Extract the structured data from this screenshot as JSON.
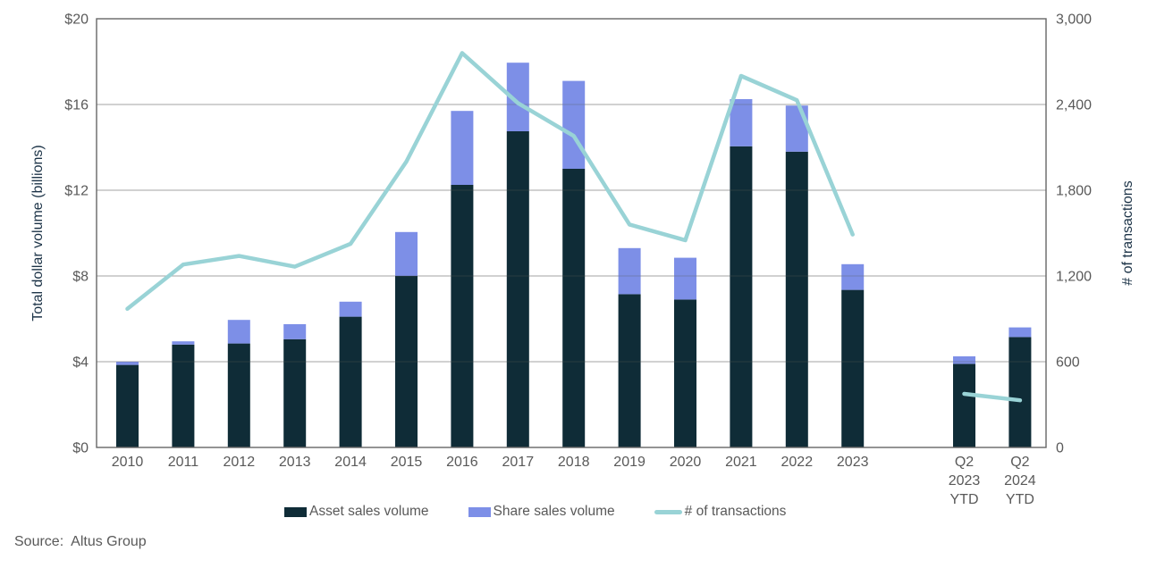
{
  "source_note": "Source:  Altus Group",
  "colors": {
    "asset": "#0f2c37",
    "share": "#7d8fe7",
    "line": "#99d3d6",
    "grid": "#d9d9d9",
    "grid_overlay": "rgba(89,89,89,0.35)",
    "frame": "#666666",
    "tick_text": "#595959",
    "axis_title_text": "#1c3347"
  },
  "chart_data": {
    "type": "bar",
    "subtype": "stacked-bars-with-line-combo",
    "title": "",
    "xlabel": "",
    "ylabel_left": "Total dollar volume (billions)",
    "ylabel_right": "# of transactions",
    "ylim_left": [
      0,
      20
    ],
    "ylim_right": [
      0,
      3000
    ],
    "grid": "horizontal",
    "legend_position": "bottom",
    "categories": [
      "2010",
      "2011",
      "2012",
      "2013",
      "2014",
      "2015",
      "2016",
      "2017",
      "2018",
      "2019",
      "2020",
      "2021",
      "2022",
      "2023",
      "Q2 2023 YTD",
      "Q2 2024 YTD"
    ],
    "category_tick_lines": [
      [
        "2010"
      ],
      [
        "2011"
      ],
      [
        "2012"
      ],
      [
        "2013"
      ],
      [
        "2014"
      ],
      [
        "2015"
      ],
      [
        "2016"
      ],
      [
        "2017"
      ],
      [
        "2018"
      ],
      [
        "2019"
      ],
      [
        "2020"
      ],
      [
        "2021"
      ],
      [
        "2022"
      ],
      [
        "2023"
      ],
      [
        "Q2",
        "2023",
        "YTD"
      ],
      [
        "Q2",
        "2024",
        "YTD"
      ]
    ],
    "slots": [
      0,
      1,
      2,
      3,
      4,
      5,
      6,
      7,
      8,
      9,
      10,
      11,
      12,
      13,
      15,
      16
    ],
    "total_slots": 17,
    "yticks_left": [
      "$0",
      "$4",
      "$8",
      "$12",
      "$16",
      "$20"
    ],
    "ytick_values_left": [
      0,
      4,
      8,
      12,
      16,
      20
    ],
    "yticks_right": [
      "0",
      "600",
      "1,200",
      "1,800",
      "2,400",
      "3,000"
    ],
    "ytick_values_right": [
      0,
      600,
      1200,
      1800,
      2400,
      3000
    ],
    "series": [
      {
        "name": "Asset sales volume",
        "type": "bar",
        "axis": "left",
        "values": [
          3.85,
          4.8,
          4.85,
          5.05,
          6.1,
          8.0,
          12.25,
          14.75,
          13.0,
          7.15,
          6.9,
          14.05,
          13.8,
          7.35,
          3.9,
          5.15
        ]
      },
      {
        "name": "Share sales volume",
        "type": "bar",
        "axis": "left",
        "values": [
          0.15,
          0.15,
          1.1,
          0.7,
          0.7,
          2.05,
          3.45,
          3.2,
          4.1,
          2.15,
          1.95,
          2.2,
          2.15,
          1.2,
          0.35,
          0.45
        ]
      },
      {
        "name": "# of transactions",
        "type": "line",
        "axis": "right",
        "values": [
          970,
          1280,
          1340,
          1265,
          1425,
          2000,
          2760,
          2410,
          2180,
          1560,
          1450,
          2600,
          2430,
          1490,
          375,
          330
        ]
      }
    ],
    "line_segments": [
      [
        0,
        13
      ],
      [
        14,
        15
      ]
    ]
  }
}
